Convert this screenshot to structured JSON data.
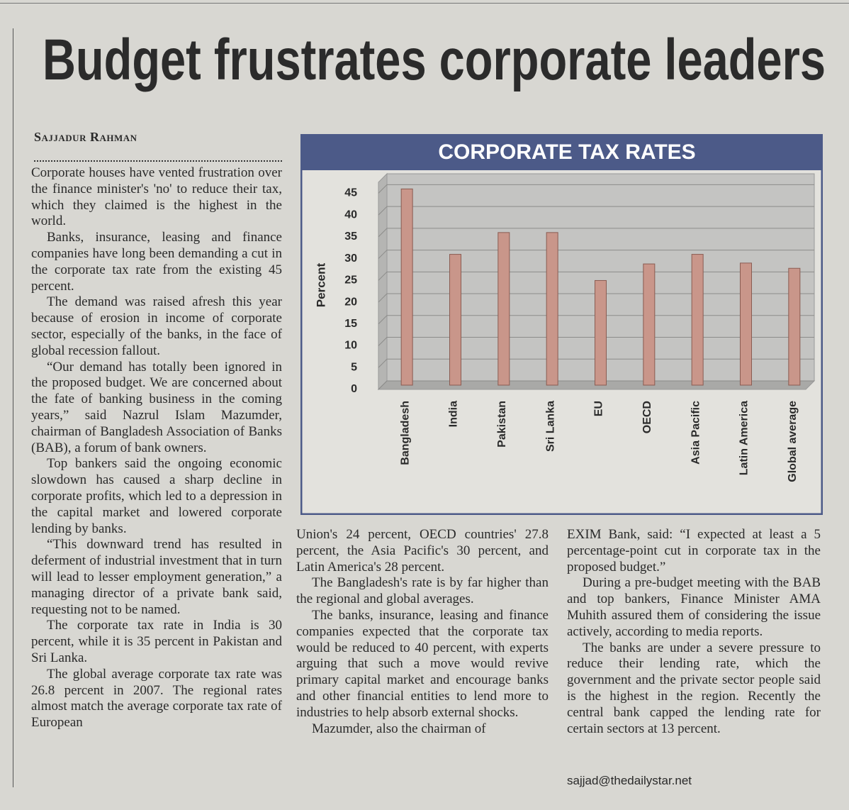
{
  "headline": "Budget frustrates corporate leaders",
  "byline": "Sajjadur Rahman",
  "columns": [
    [
      "Corporate houses have vented frustration over the finance minister's 'no' to reduce their tax, which they claimed is the highest in the world.",
      "Banks, insurance, leasing and finance companies have long been demanding a cut in the corporate tax rate from the existing 45 percent.",
      "The demand was raised afresh this year because of erosion in income of corporate sector, especially of the banks, in the face of global recession fallout.",
      "“Our demand has totally been ignored in the proposed budget. We are concerned about the fate of banking business in the coming years,” said Nazrul Islam Mazumder, chairman of Bangladesh Association of Banks (BAB), a forum of bank owners.",
      "Top bankers said the ongoing economic slowdown has caused a sharp decline in corporate profits, which led to a depression in the capital market and lowered corporate lending by banks.",
      "“This downward trend has resulted in deferment of industrial investment that in turn will lead to lesser employment generation,” a managing director of a private bank said, requesting not to be named.",
      "The corporate tax rate in India is 30 percent, while it is 35 percent in Pakistan and Sri Lanka.",
      "The global average corporate tax rate was 26.8 percent in 2007. The regional rates almost match the average corporate tax rate of European"
    ],
    [
      "Union's 24 percent, OECD countries' 27.8 percent, the Asia Pacific's 30 percent, and Latin America's 28 percent.",
      "The Bangladesh's rate is by far higher than the regional and global averages.",
      "The banks, insurance, leasing and finance companies expected that the corporate tax would be reduced to 40 percent, with experts arguing that such a move would revive primary capital market and encourage banks and other financial entities to lend more to industries to help absorb external shocks.",
      "Mazumder, also the chairman of"
    ],
    [
      "EXIM Bank, said: “I expected at least a 5 percentage-point cut in corporate tax in the proposed budget.”",
      "During a pre-budget meeting with the BAB and top bankers, Finance Minister AMA Muhith assured them of considering the issue actively, according to media reports.",
      "The banks are under a severe pressure to reduce their lending rate, which the government and the private sector people said is the highest in the region. Recently the central bank capped the lending rate for certain sectors at 13 percent."
    ]
  ],
  "email": "sajjad@thedailystar.net",
  "chart_data": {
    "type": "bar",
    "title": "CORPORATE TAX RATES",
    "y_label": "Percent",
    "categories": [
      "Bangladesh",
      "India",
      "Pakistan",
      "Sri Lanka",
      "EU",
      "OECD",
      "Asia Pacific",
      "Latin America",
      "Global average"
    ],
    "values": [
      45,
      30,
      35,
      35,
      24,
      27.8,
      30,
      28,
      26.8
    ],
    "color": "#c9968a",
    "ylim": [
      0,
      47.5
    ],
    "yticks": [
      0,
      5,
      10,
      15,
      20,
      25,
      30,
      35,
      40,
      45
    ],
    "grid": true
  }
}
